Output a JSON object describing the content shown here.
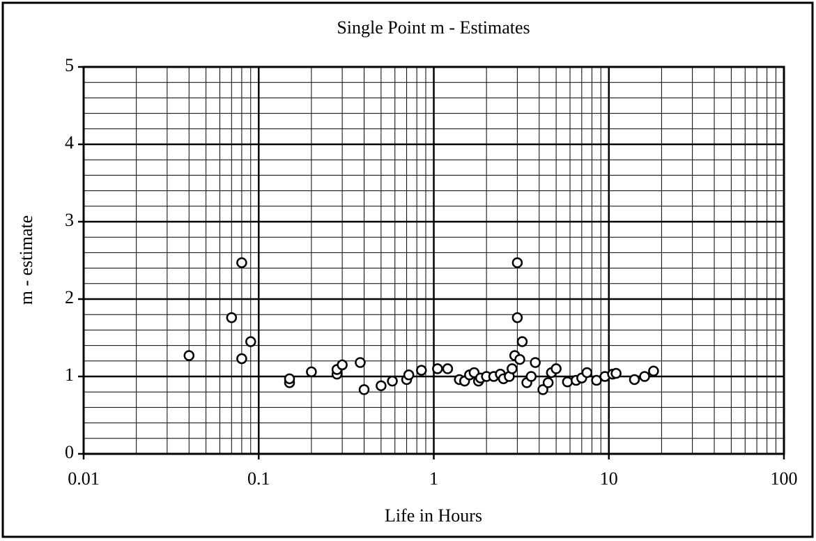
{
  "chart_data": {
    "type": "scatter",
    "title": "Single Point m - Estimates",
    "xlabel": "Life in Hours",
    "ylabel": "m - estimate",
    "xscale": "log",
    "grid": true,
    "xlim": [
      0.01,
      100
    ],
    "xticks": [
      0.01,
      0.1,
      1,
      10,
      100
    ],
    "ylim": [
      0,
      5
    ],
    "yticks": [
      0,
      1,
      2,
      3,
      4,
      5
    ],
    "color": "#000000",
    "x": [
      0.04,
      0.07,
      0.08,
      0.08,
      0.09,
      0.15,
      0.15,
      0.2,
      0.28,
      0.28,
      0.3,
      0.38,
      0.4,
      0.5,
      0.58,
      0.7,
      0.72,
      0.85,
      1.05,
      1.2,
      1.4,
      1.5,
      1.6,
      1.7,
      1.8,
      1.85,
      2.0,
      2.2,
      2.4,
      2.5,
      2.7,
      2.8,
      2.9,
      3.0,
      3.0,
      3.1,
      3.2,
      3.4,
      3.6,
      3.8,
      4.2,
      4.5,
      4.7,
      5.0,
      5.8,
      6.5,
      7.0,
      7.5,
      8.5,
      9.5,
      10.5,
      11,
      14,
      16,
      18
    ],
    "values": [
      1.27,
      1.76,
      2.47,
      1.23,
      1.45,
      0.92,
      0.97,
      1.06,
      1.03,
      1.09,
      1.15,
      1.18,
      0.83,
      0.88,
      0.94,
      0.96,
      1.02,
      1.08,
      1.1,
      1.1,
      0.96,
      0.94,
      1.02,
      1.05,
      0.94,
      0.98,
      1.0,
      1.0,
      1.03,
      0.97,
      1.0,
      1.1,
      1.27,
      2.47,
      1.76,
      1.22,
      1.45,
      0.92,
      1.0,
      1.18,
      0.83,
      0.92,
      1.05,
      1.1,
      0.93,
      0.95,
      0.98,
      1.05,
      0.95,
      1.0,
      1.03,
      1.04,
      0.96,
      1.0,
      1.07
    ]
  }
}
